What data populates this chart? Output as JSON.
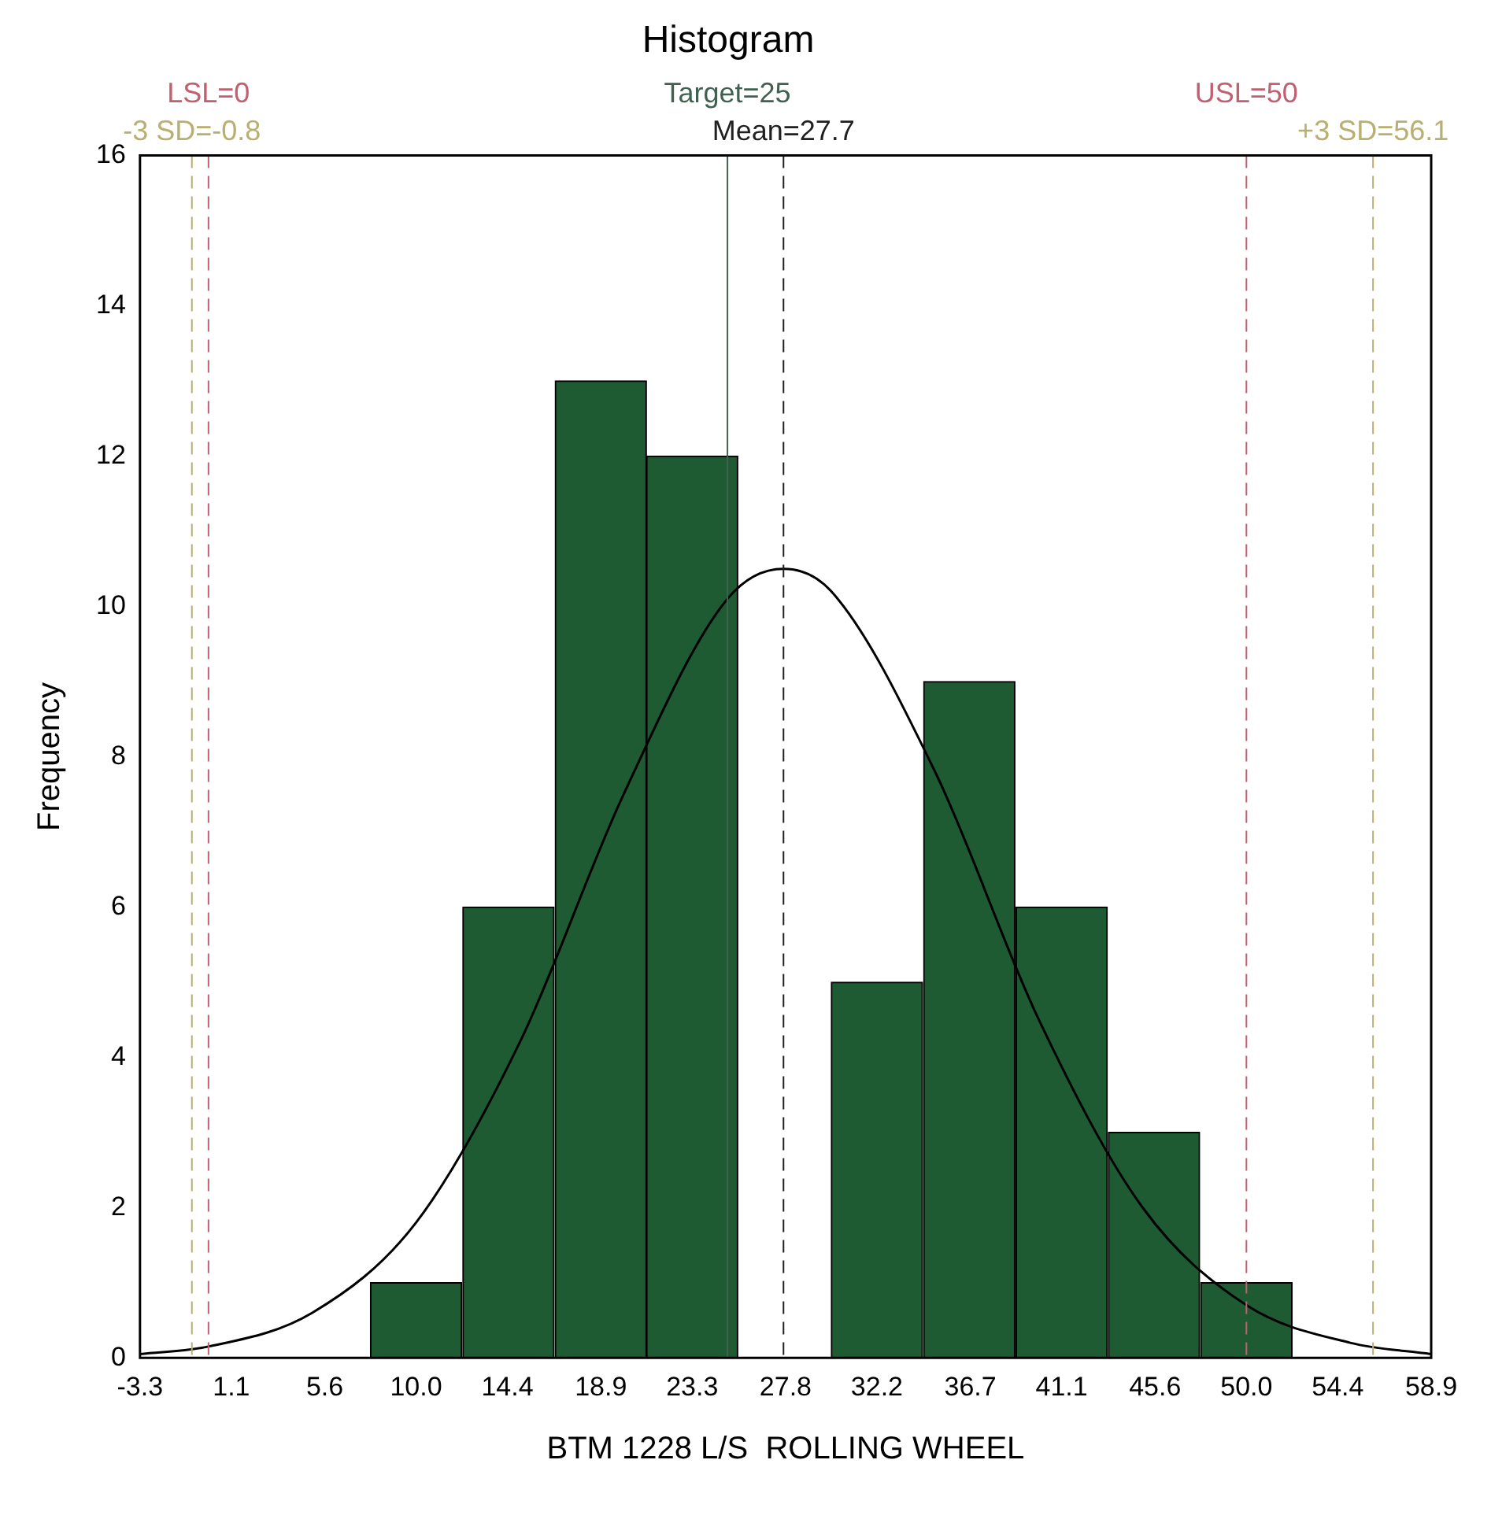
{
  "chart_data": {
    "type": "histogram",
    "title": "Histogram",
    "xlabel": "BTM 1228 L/S  ROLLING WHEEL",
    "ylabel": "Frequency",
    "bins": [
      7.8,
      12.2,
      16.7,
      21.1,
      25.5,
      30.0,
      34.4,
      38.9,
      43.3,
      47.8,
      52.2
    ],
    "values": [
      1,
      6,
      13,
      12,
      0,
      5,
      9,
      6,
      3,
      1
    ],
    "color": "#1e5b32",
    "series": [
      {
        "type": "line",
        "color": "#000000",
        "x": [
          -3.3,
          0,
          5,
          10,
          15,
          20,
          25,
          27.7,
          30,
          35,
          40,
          45,
          50,
          55,
          58.9
        ],
        "values": [
          0.05,
          0.15,
          0.6,
          1.8,
          4.2,
          7.5,
          10.1,
          10.5,
          10.2,
          7.8,
          4.5,
          2.0,
          0.7,
          0.2,
          0.05
        ]
      }
    ],
    "xlim": [
      -3.3,
      58.9
    ],
    "xticks": [
      -3.3,
      1.1,
      5.6,
      {
        "value": 10.0,
        "label": "10.0"
      },
      14.4,
      18.9,
      23.3,
      27.8,
      32.2,
      36.7,
      41.1,
      45.6,
      {
        "value": 50.0,
        "label": "50.0"
      },
      54.4,
      58.9
    ],
    "ylim": [
      0,
      16
    ],
    "yticks": [
      0,
      2,
      4,
      6,
      8,
      10,
      12,
      14,
      16
    ],
    "ref_lines": [
      {
        "axis": "x",
        "value": 0,
        "label": "LSL=0",
        "color": "#c06070",
        "line_style": "dashed"
      },
      {
        "axis": "x",
        "value": -0.8,
        "label": "-3 SD=-0.8",
        "color": "#b8b070",
        "line_style": "dashed"
      },
      {
        "axis": "x",
        "value": 25,
        "label": "Target=25",
        "color": "#406050",
        "line_style": "solid"
      },
      {
        "axis": "x",
        "value": 27.7,
        "label": "Mean=27.7",
        "color": "#202020",
        "line_style": "dashed"
      },
      {
        "axis": "x",
        "value": 50,
        "label": "USL=50",
        "color": "#c06070",
        "line_style": "dashed"
      },
      {
        "axis": "x",
        "value": 56.1,
        "label": "+3 SD=56.1",
        "color": "#b8b070",
        "line_style": "dashed"
      }
    ],
    "grid": false,
    "legend": false,
    "marker": "none"
  }
}
